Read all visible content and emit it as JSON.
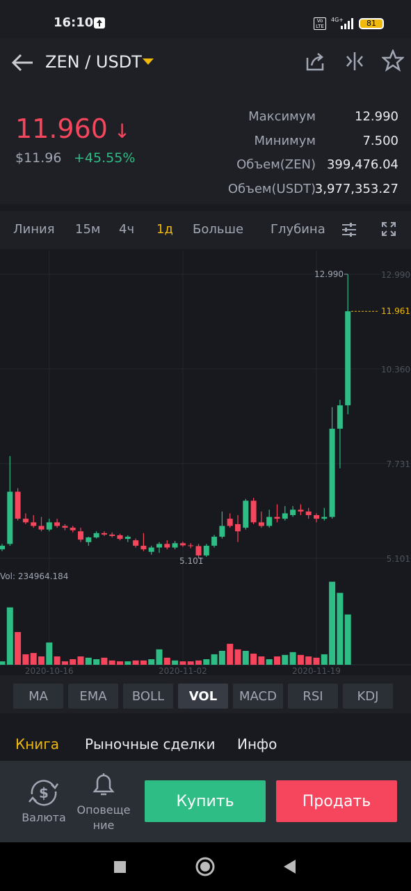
{
  "status": {
    "time": "16:10",
    "network": "4G+",
    "volte": "Vo LTE",
    "battery": "81"
  },
  "header": {
    "pair": "ZEN / USDT"
  },
  "price": {
    "last": "11.960",
    "usd": "$11.96",
    "change": "+45.55%"
  },
  "stats": [
    {
      "label": "Максимум",
      "value": "12.990"
    },
    {
      "label": "Минимум",
      "value": "7.500"
    },
    {
      "label": "Объем(ZEN)",
      "value": "399,476.04"
    },
    {
      "label": "Объем(USDT)",
      "value": "3,977,353.27"
    }
  ],
  "intervals": [
    {
      "label": "Линия"
    },
    {
      "label": "15м"
    },
    {
      "label": "4ч"
    },
    {
      "label": "1д",
      "active": true
    },
    {
      "label": "Больше"
    },
    {
      "label": "Глубина"
    }
  ],
  "chart_data": {
    "type": "candlestick",
    "categories": [
      null,
      null,
      null,
      null,
      null,
      null,
      "2020-10-16",
      null,
      null,
      null,
      null,
      null,
      null,
      null,
      null,
      null,
      null,
      null,
      null,
      null,
      null,
      null,
      null,
      "2020-11-02",
      null,
      null,
      null,
      null,
      null,
      null,
      null,
      null,
      null,
      null,
      null,
      null,
      null,
      null,
      null,
      null,
      "2020-11-19",
      null,
      null,
      null,
      null
    ],
    "open": [
      5.35,
      5.5,
      6.95,
      6.2,
      6.1,
      6.0,
      5.9,
      6.1,
      6.0,
      5.95,
      5.85,
      5.55,
      5.68,
      5.8,
      5.76,
      5.74,
      5.64,
      5.6,
      5.45,
      5.28,
      5.4,
      5.5,
      5.4,
      5.52,
      5.46,
      5.44,
      5.18,
      5.45,
      5.7,
      6.2,
      6.05,
      5.95,
      6.7,
      6.1,
      6.0,
      6.25,
      6.2,
      6.3,
      6.45,
      6.4,
      6.3,
      6.2,
      6.25,
      8.7,
      9.35
    ],
    "high": [
      5.5,
      7.94,
      7.05,
      6.35,
      6.3,
      6.25,
      6.2,
      6.2,
      6.05,
      6.0,
      5.95,
      5.7,
      5.85,
      5.85,
      5.82,
      5.78,
      5.74,
      5.65,
      5.8,
      5.45,
      5.55,
      5.6,
      5.58,
      5.56,
      5.52,
      5.5,
      5.5,
      5.75,
      6.4,
      6.35,
      6.3,
      6.75,
      6.78,
      6.4,
      6.45,
      6.6,
      6.55,
      6.55,
      6.6,
      6.5,
      6.35,
      6.5,
      9.3,
      9.5,
      12.99
    ],
    "low": [
      5.3,
      5.45,
      6.15,
      6.05,
      5.95,
      5.85,
      5.85,
      5.95,
      5.88,
      5.82,
      5.55,
      5.45,
      5.65,
      5.72,
      5.68,
      5.6,
      5.55,
      5.4,
      5.3,
      5.2,
      5.25,
      5.35,
      5.35,
      5.42,
      5.38,
      5.101,
      5.14,
      5.4,
      5.65,
      5.95,
      5.55,
      5.9,
      6.05,
      5.95,
      5.95,
      6.1,
      6.15,
      6.25,
      6.3,
      6.2,
      6.1,
      6.15,
      6.2,
      7.6,
      9.1
    ],
    "close": [
      5.45,
      6.95,
      6.2,
      6.1,
      6.0,
      5.9,
      6.1,
      6.0,
      5.95,
      5.88,
      5.62,
      5.68,
      5.8,
      5.76,
      5.72,
      5.64,
      5.7,
      5.45,
      5.35,
      5.4,
      5.5,
      5.4,
      5.52,
      5.46,
      5.44,
      5.18,
      5.45,
      5.7,
      6.0,
      6.0,
      5.85,
      6.7,
      6.1,
      6.0,
      6.25,
      6.2,
      6.35,
      6.45,
      6.4,
      6.3,
      6.2,
      6.25,
      8.7,
      9.35,
      11.961
    ],
    "up_color": "#2ebd85",
    "down_color": "#f6465d",
    "ylim": [
      4.85,
      13.55
    ],
    "yticks": [
      {
        "value": 12.99,
        "label": "12.990"
      },
      {
        "value": 10.36,
        "label": "10.360"
      },
      7.731,
      5.101
    ],
    "max_marker": {
      "value": 12.99,
      "label": "12.990"
    },
    "min_marker": {
      "value": 5.101,
      "label": "5.101"
    },
    "last_price": {
      "value": 11.961,
      "label": "11.961"
    },
    "volume": {
      "title": "Vol:",
      "ylim": [
        0,
        400000
      ],
      "values": [
        16000,
        268000,
        153000,
        49000,
        55000,
        39000,
        104000,
        39000,
        16000,
        26000,
        39000,
        33000,
        26000,
        33000,
        20000,
        16000,
        16000,
        20000,
        20000,
        26000,
        72000,
        33000,
        20000,
        16000,
        16000,
        20000,
        26000,
        49000,
        65000,
        98000,
        72000,
        65000,
        52000,
        39000,
        26000,
        39000,
        46000,
        59000,
        46000,
        39000,
        33000,
        49000,
        388000,
        336000,
        234964.184
      ]
    }
  },
  "indicators": [
    {
      "label": "MA"
    },
    {
      "label": "EMA"
    },
    {
      "label": "BOLL"
    },
    {
      "label": "VOL",
      "active": true
    },
    {
      "label": "MACD"
    },
    {
      "label": "RSI"
    },
    {
      "label": "KDJ"
    }
  ],
  "tabs": [
    {
      "label": "Книга",
      "active": true
    },
    {
      "label": "Рыночные сделки"
    },
    {
      "label": "Инфо"
    }
  ],
  "bottom": {
    "currency": "Валюта",
    "alerts": "Оповещение",
    "buy": "Купить",
    "sell": "Продать"
  }
}
